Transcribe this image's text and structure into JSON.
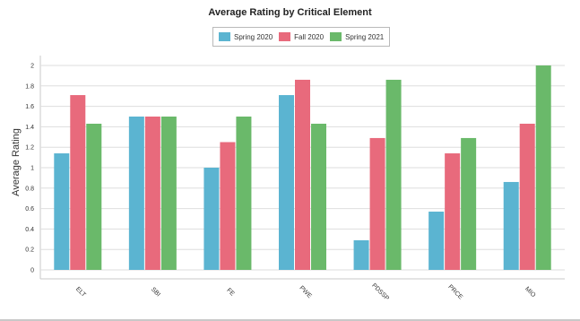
{
  "chart_data": {
    "type": "bar",
    "title": "Average Rating by Critical Element",
    "xlabel": "",
    "ylabel": "Average Rating",
    "ylim": [
      0,
      2
    ],
    "yticks": [
      "0",
      "0.2",
      "0.4",
      "0.6",
      "0.8",
      "1",
      "1.2",
      "1.4",
      "1.6",
      "1.8",
      "2"
    ],
    "grid": true,
    "legend_position": "top-center",
    "categories": [
      "ELT",
      "SBI",
      "FE",
      "PWE",
      "PDSSP",
      "PRCE",
      "MIO"
    ],
    "series": [
      {
        "name": "Spring 2020",
        "color": "#5bb4d1",
        "values": [
          1.14,
          1.5,
          1.0,
          1.71,
          0.29,
          0.57,
          0.86
        ]
      },
      {
        "name": "Fall 2020",
        "color": "#e86a7c",
        "values": [
          1.71,
          1.5,
          1.25,
          1.86,
          1.29,
          1.14,
          1.43
        ]
      },
      {
        "name": "Spring 2021",
        "color": "#6ab96a",
        "values": [
          1.43,
          1.5,
          1.5,
          1.43,
          1.86,
          1.29,
          2.0
        ]
      }
    ]
  }
}
